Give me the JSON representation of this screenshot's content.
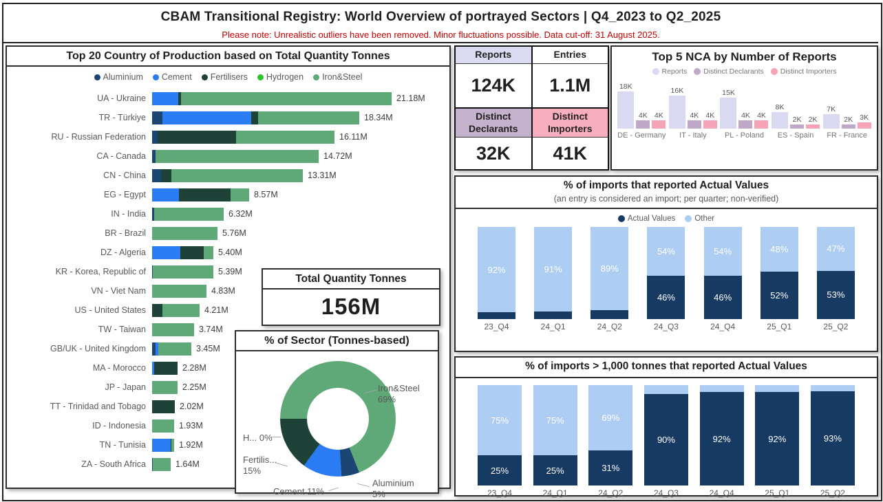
{
  "header": {
    "title": "CBAM Transitional Registry: World Overview of portrayed Sectors | Q4_2023 to Q2_2025",
    "note": "Please note: Unrealistic outliers have been removed. Minor fluctuations possible. Data cut-off: 31 August 2025."
  },
  "colors": {
    "sectors": {
      "Aluminium": "#1B4673",
      "Cement": "#2B7BF3",
      "Fertilisers": "#1E4237",
      "Hydrogen": "#2FC32F",
      "Iron&Steel": "#5FA877"
    },
    "actual": "#173A63",
    "other": "#AECDF3",
    "nca_series": [
      "#D9D9F2",
      "#C0A8C9",
      "#F5A3B6"
    ],
    "kpi_reports_bg": "#DBDBF2",
    "kpi_entries_bg": "#FFFFFF",
    "kpi_declarants_bg": "#C4B1CC",
    "kpi_importers_bg": "#F8AFBD",
    "note_red": "#C00000"
  },
  "kpis": [
    {
      "label": "Reports",
      "value": "124K",
      "header_bg": "#DBDBF2"
    },
    {
      "label": "Entries",
      "value": "1.1M",
      "header_bg": "#FFFFFF"
    },
    {
      "label": "Distinct Declarants",
      "value": "32K",
      "header_bg": "#C4B1CC"
    },
    {
      "label": "Distinct Importers",
      "value": "41K",
      "header_bg": "#F8AFBD"
    }
  ],
  "total_card": {
    "title": "Total Quantity Tonnes",
    "value": "156M"
  },
  "chart_data": [
    {
      "id": "top20_countries",
      "type": "bar",
      "orientation": "horizontal",
      "stacked": true,
      "title": "Top 20 Country of Production based on Total Quantity Tonnes",
      "legend": [
        "Aluminium",
        "Cement",
        "Fertilisers",
        "Hydrogen",
        "Iron&Steel"
      ],
      "unit": "million tonnes",
      "max": 21.18,
      "rows": [
        {
          "label": "UA - Ukraine",
          "total": 21.18,
          "total_label": "21.18M",
          "segments": {
            "Cement": 11,
            "Fertilisers": 1,
            "Iron&Steel": 88
          }
        },
        {
          "label": "TR - Türkiye",
          "total": 18.34,
          "total_label": "18.34M",
          "segments": {
            "Aluminium": 5,
            "Cement": 43,
            "Fertilisers": 3,
            "Iron&Steel": 49
          }
        },
        {
          "label": "RU - Russian Federation",
          "total": 16.11,
          "total_label": "16.11M",
          "segments": {
            "Aluminium": 3,
            "Fertilisers": 43,
            "Iron&Steel": 54
          }
        },
        {
          "label": "CA - Canada",
          "total": 14.72,
          "total_label": "14.72M",
          "segments": {
            "Aluminium": 2,
            "Iron&Steel": 98
          }
        },
        {
          "label": "CN - China",
          "total": 13.31,
          "total_label": "13.31M",
          "segments": {
            "Aluminium": 6,
            "Fertilisers": 7,
            "Iron&Steel": 87
          }
        },
        {
          "label": "EG - Egypt",
          "total": 8.57,
          "total_label": "8.57M",
          "segments": {
            "Cement": 28,
            "Fertilisers": 53,
            "Iron&Steel": 19
          }
        },
        {
          "label": "IN - India",
          "total": 6.32,
          "total_label": "6.32M",
          "segments": {
            "Aluminium": 3,
            "Iron&Steel": 97
          }
        },
        {
          "label": "BR - Brazil",
          "total": 5.76,
          "total_label": "5.76M",
          "segments": {
            "Iron&Steel": 100
          }
        },
        {
          "label": "DZ - Algeria",
          "total": 5.4,
          "total_label": "5.40M",
          "segments": {
            "Cement": 46,
            "Fertilisers": 38,
            "Iron&Steel": 16
          }
        },
        {
          "label": "KR - Korea, Republic of",
          "total": 5.39,
          "total_label": "5.39M",
          "segments": {
            "Aluminium": 1,
            "Iron&Steel": 99
          }
        },
        {
          "label": "VN - Viet Nam",
          "total": 4.83,
          "total_label": "4.83M",
          "segments": {
            "Iron&Steel": 100
          }
        },
        {
          "label": "US - United States",
          "total": 4.21,
          "total_label": "4.21M",
          "segments": {
            "Fertilisers": 22,
            "Iron&Steel": 78
          }
        },
        {
          "label": "TW - Taiwan",
          "total": 3.74,
          "total_label": "3.74M",
          "segments": {
            "Iron&Steel": 100
          }
        },
        {
          "label": "GB/UK - United Kingdom",
          "total": 3.45,
          "total_label": "3.45M",
          "segments": {
            "Aluminium": 8,
            "Cement": 7,
            "Iron&Steel": 85
          }
        },
        {
          "label": "MA - Morocco",
          "total": 2.28,
          "total_label": "2.28M",
          "segments": {
            "Cement": 8,
            "Fertilisers": 92
          }
        },
        {
          "label": "JP - Japan",
          "total": 2.25,
          "total_label": "2.25M",
          "segments": {
            "Iron&Steel": 100
          }
        },
        {
          "label": "TT - Trinidad and Tobago",
          "total": 2.02,
          "total_label": "2.02M",
          "segments": {
            "Fertilisers": 100
          }
        },
        {
          "label": "ID - Indonesia",
          "total": 1.93,
          "total_label": "1.93M",
          "segments": {
            "Iron&Steel": 100
          }
        },
        {
          "label": "TN - Tunisia",
          "total": 1.92,
          "total_label": "1.92M",
          "segments": {
            "Cement": 83,
            "Fertilisers": 5,
            "Iron&Steel": 12
          }
        },
        {
          "label": "ZA - South Africa",
          "total": 1.64,
          "total_label": "1.64M",
          "segments": {
            "Aluminium": 4,
            "Iron&Steel": 96
          }
        }
      ]
    },
    {
      "id": "sector_share",
      "type": "pie",
      "title": "% of Sector (Tonnes-based)",
      "start_angle_deg": 270,
      "slices": [
        {
          "label": "Iron&Steel",
          "pct": 69
        },
        {
          "label": "Aluminium",
          "pct": 5
        },
        {
          "label": "Cement",
          "pct": 11
        },
        {
          "label": "Fertilisers",
          "pct": 15
        },
        {
          "label": "Hydrogen",
          "pct": 0
        }
      ],
      "callouts": {
        "iron": "Iron&Steel 69%",
        "hydrogen": "H... 0%",
        "fertilisers": "Fertilis... 15%",
        "cement": "Cement 11%",
        "aluminium": "Aluminium 5%"
      }
    },
    {
      "id": "top5_nca",
      "type": "bar",
      "title": "Top 5 NCA by Number of Reports",
      "legend": [
        "Reports",
        "Distinct Declarants",
        "Distinct Importers"
      ],
      "max": 18,
      "groups": [
        {
          "label": "DE - Germany",
          "values": [
            18,
            4,
            4
          ],
          "labels": [
            "18K",
            "4K",
            "4K"
          ]
        },
        {
          "label": "IT - Italy",
          "values": [
            16,
            4,
            4
          ],
          "labels": [
            "16K",
            "4K",
            "4K"
          ]
        },
        {
          "label": "PL - Poland",
          "values": [
            15,
            4,
            4
          ],
          "labels": [
            "15K",
            "4K",
            "4K"
          ]
        },
        {
          "label": "ES - Spain",
          "values": [
            8,
            2,
            2
          ],
          "labels": [
            "8K",
            "2K",
            "2K"
          ]
        },
        {
          "label": "FR - France",
          "values": [
            7,
            2,
            3
          ],
          "labels": [
            "7K",
            "2K",
            "3K"
          ]
        }
      ]
    },
    {
      "id": "imports_actual_values",
      "type": "bar",
      "stacked": true,
      "title": "% of imports that reported Actual Values",
      "subtitle": "(an entry is considered an import; per quarter; non-verified)",
      "legend": [
        "Actual Values",
        "Other"
      ],
      "categories": [
        "23_Q4",
        "24_Q1",
        "24_Q2",
        "24_Q3",
        "24_Q4",
        "25_Q1",
        "25_Q2"
      ],
      "ylim": [
        0,
        100
      ],
      "series": [
        {
          "name": "Actual Values",
          "values": [
            8,
            9,
            11,
            46,
            46,
            52,
            53
          ],
          "labels": [
            "",
            "",
            "",
            "46%",
            "46%",
            "52%",
            "53%"
          ]
        },
        {
          "name": "Other",
          "values": [
            92,
            91,
            89,
            54,
            54,
            48,
            47
          ],
          "labels": [
            "92%",
            "91%",
            "89%",
            "54%",
            "54%",
            "48%",
            "47%"
          ]
        }
      ]
    },
    {
      "id": "imports_1000t_actual_values",
      "type": "bar",
      "stacked": true,
      "title": "% of imports > 1,000 tonnes that reported Actual Values",
      "legend": [
        "Actual Values",
        "Other"
      ],
      "categories": [
        "23_Q4",
        "24_Q1",
        "24_Q2",
        "24_Q3",
        "24_Q4",
        "25_Q1",
        "25_Q2"
      ],
      "ylim": [
        0,
        100
      ],
      "series": [
        {
          "name": "Actual Values",
          "values": [
            25,
            25,
            31,
            90,
            92,
            92,
            93
          ],
          "labels": [
            "25%",
            "25%",
            "31%",
            "90%",
            "92%",
            "92%",
            "93%"
          ]
        },
        {
          "name": "Other",
          "values": [
            75,
            75,
            69,
            10,
            8,
            8,
            7
          ],
          "labels": [
            "75%",
            "75%",
            "69%",
            "",
            "",
            "",
            ""
          ]
        }
      ]
    }
  ]
}
